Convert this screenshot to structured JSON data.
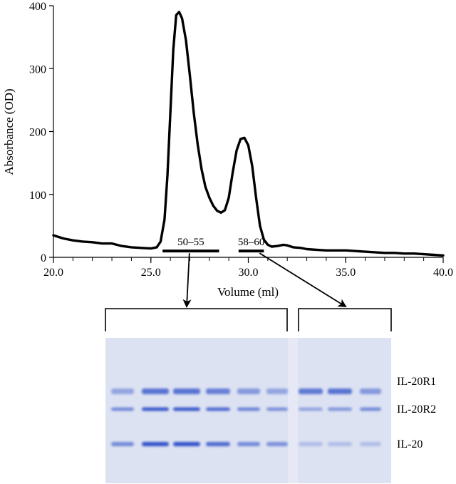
{
  "chart_data": {
    "type": "line",
    "title": "",
    "xlabel": "Volume (ml)",
    "ylabel": "Absorbance (OD)",
    "xlim": [
      20.0,
      40.0
    ],
    "ylim": [
      0,
      400
    ],
    "x_ticks": [
      20.0,
      25.0,
      30.0,
      35.0,
      40.0
    ],
    "x_tick_labels": [
      "20.0",
      "25.0",
      "30.0",
      "35.0",
      "40.0"
    ],
    "y_ticks": [
      0,
      100,
      200,
      300,
      400
    ],
    "y_tick_labels": [
      "0",
      "100",
      "200",
      "300",
      "400"
    ],
    "grid": false,
    "series": [
      {
        "x": [
          20.0,
          20.5,
          21.0,
          21.5,
          22.0,
          22.5,
          23.0,
          23.5,
          24.0,
          24.5,
          25.0,
          25.3,
          25.5,
          25.7,
          25.85,
          26.0,
          26.15,
          26.3,
          26.45,
          26.6,
          26.8,
          27.0,
          27.2,
          27.4,
          27.6,
          27.8,
          28.0,
          28.2,
          28.4,
          28.6,
          28.8,
          29.0,
          29.2,
          29.4,
          29.6,
          29.8,
          30.0,
          30.2,
          30.4,
          30.6,
          30.8,
          31.0,
          31.2,
          31.5,
          31.8,
          32.0,
          32.3,
          32.7,
          33.0,
          33.5,
          34.0,
          34.5,
          35.0,
          35.5,
          36.0,
          36.5,
          37.0,
          37.5,
          38.0,
          38.5,
          39.0,
          39.5,
          40.0
        ],
        "values": [
          35,
          30,
          27,
          25,
          24,
          22,
          22,
          18,
          16,
          15,
          14,
          16,
          25,
          60,
          130,
          230,
          330,
          385,
          390,
          380,
          345,
          290,
          230,
          180,
          140,
          112,
          95,
          82,
          74,
          71,
          75,
          95,
          135,
          170,
          188,
          190,
          178,
          145,
          95,
          50,
          28,
          20,
          17,
          18,
          20,
          19,
          16,
          15,
          13,
          12,
          11,
          11,
          11,
          10,
          9,
          8,
          7,
          7,
          6,
          6,
          5,
          4,
          3
        ]
      }
    ],
    "annotations": [
      {
        "label": "50–55",
        "x_start": 25.6,
        "x_end": 28.5,
        "y": 10,
        "gel_group": "left"
      },
      {
        "label": "58–60",
        "x_start": 29.5,
        "x_end": 30.8,
        "y": 10,
        "gel_group": "right"
      }
    ]
  },
  "gel": {
    "lanes": 9,
    "left_group_lanes": 6,
    "right_group_lanes": 3,
    "colors": {
      "background": "#dfe3f2",
      "band": "#2f50c8"
    },
    "bands": [
      {
        "label": "IL-20R1",
        "intensities": [
          0.35,
          0.75,
          0.75,
          0.65,
          0.45,
          0.35,
          0.7,
          0.75,
          0.45
        ]
      },
      {
        "label": "IL-20R2",
        "intensities": [
          0.55,
          0.95,
          0.95,
          0.8,
          0.6,
          0.5,
          0.35,
          0.45,
          0.55
        ]
      },
      {
        "label": "IL-20",
        "intensities": [
          0.55,
          1.0,
          1.0,
          0.8,
          0.55,
          0.5,
          0.15,
          0.15,
          0.15
        ]
      }
    ]
  }
}
